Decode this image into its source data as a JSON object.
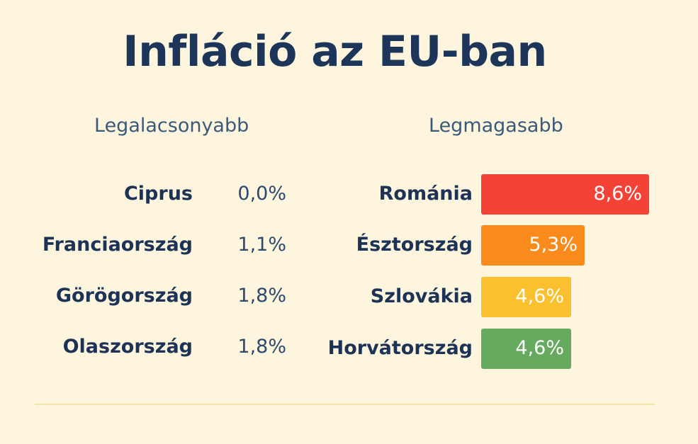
{
  "chart_data": {
    "type": "bar",
    "title": "Infláció az EU-ban",
    "lowest": {
      "heading": "Legalacsonyabb",
      "items": [
        {
          "country": "Ciprus",
          "label": "0,0%",
          "value": 0.0
        },
        {
          "country": "Franciaország",
          "label": "1,1%",
          "value": 1.1
        },
        {
          "country": "Görögország",
          "label": "1,8%",
          "value": 1.8
        },
        {
          "country": "Olaszország",
          "label": "1,8%",
          "value": 1.8
        }
      ]
    },
    "highest": {
      "heading": "Legmagasabb",
      "items": [
        {
          "country": "Románia",
          "label": "8,6%",
          "value": 8.6,
          "color": "#f44336"
        },
        {
          "country": "Észtország",
          "label": "5,3%",
          "value": 5.3,
          "color": "#f98b1d"
        },
        {
          "country": "Szlovákia",
          "label": "4,6%",
          "value": 4.6,
          "color": "#fbc02d"
        },
        {
          "country": "Horvátország",
          "label": "4,6%",
          "value": 4.6,
          "color": "#66aa5f"
        }
      ]
    }
  }
}
